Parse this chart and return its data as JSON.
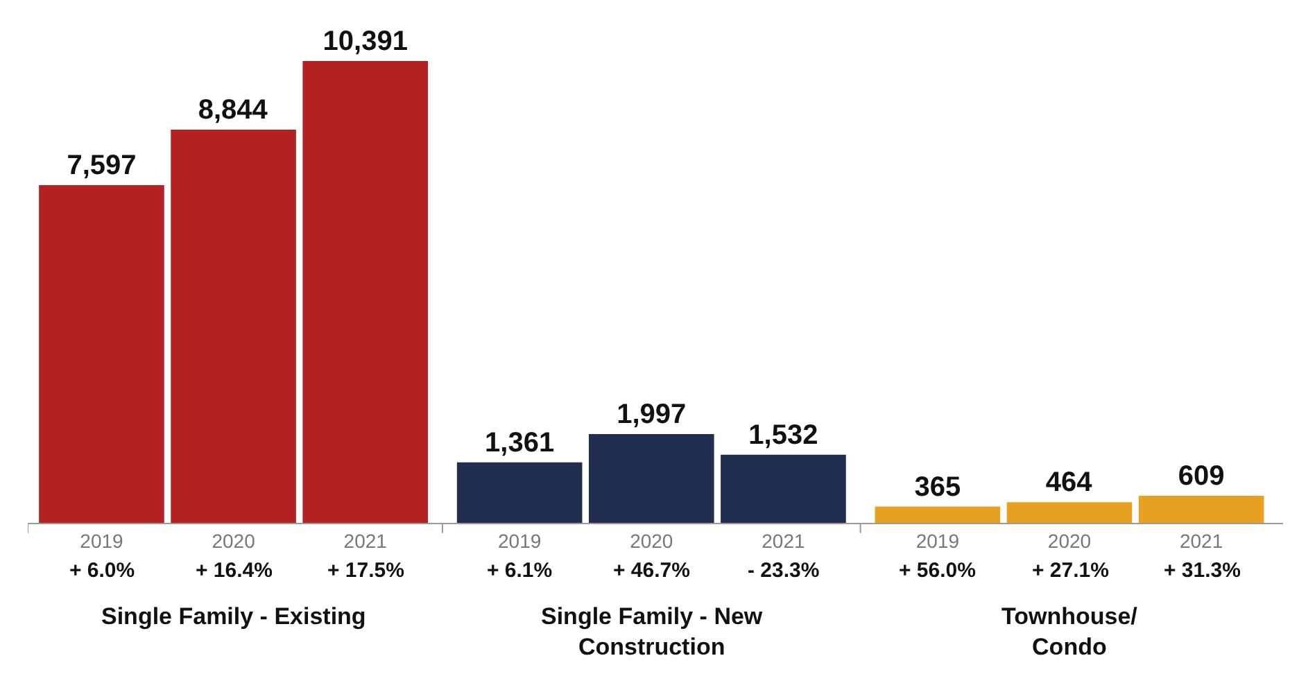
{
  "chart_data": {
    "type": "bar",
    "categories": [
      "2019",
      "2020",
      "2021",
      "2019",
      "2020",
      "2021",
      "2019",
      "2020",
      "2021"
    ],
    "values": [
      7597,
      8844,
      10391,
      1361,
      1997,
      1532,
      365,
      464,
      609
    ],
    "colors": [
      "#b22222",
      "#b22222",
      "#b22222",
      "#222e50",
      "#222e50",
      "#222e50",
      "#e8a020",
      "#e8a020",
      "#e8a020"
    ],
    "value_labels": [
      "7,597",
      "8,844",
      "10,391",
      "1,361",
      "1,997",
      "1,532",
      "365",
      "464",
      "609"
    ],
    "tick_labels": "x",
    "annotations": [
      "+ 6.0%",
      "+ 16.4%",
      "+ 17.5%",
      "+ 6.1%",
      "+ 46.7%",
      "- 23.3%",
      "+ 56.0%",
      "+ 27.1%",
      "+ 31.3%",
      "Single Family - Existing",
      "Single Family - New\nConstruction",
      "Townhouse/\nCondo"
    ]
  }
}
